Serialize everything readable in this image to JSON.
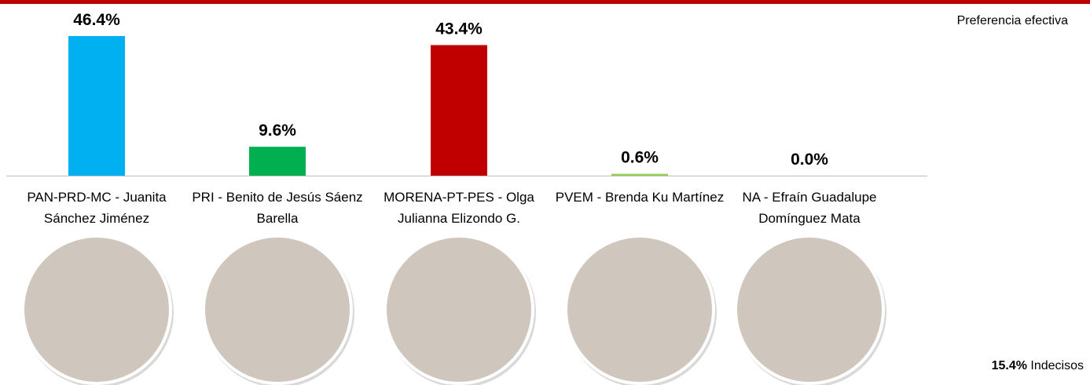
{
  "chart_data": {
    "type": "bar",
    "categories": [
      "PAN-PRD-MC - Juanita Sánchez Jiménez",
      "PRI - Benito de Jesús Sáenz Barella",
      "MORENA-PT-PES - Olga Julianna Elizondo G.",
      "PVEM - Brenda Ku Martínez",
      "NA - Efraín Guadalupe Domínguez Mata"
    ],
    "values": [
      46.4,
      9.6,
      43.4,
      0.6,
      0.0
    ],
    "value_labels": [
      "46.4%",
      "9.6%",
      "43.4%",
      "0.6%",
      "0.0%"
    ],
    "colors": [
      "#00b0f0",
      "#00b050",
      "#c00000",
      "#92d050",
      "#7f7f7f"
    ],
    "annotation": "Preferencia efectiva",
    "undecided_label": "15.4%",
    "undecided_text": "Indecisos"
  }
}
